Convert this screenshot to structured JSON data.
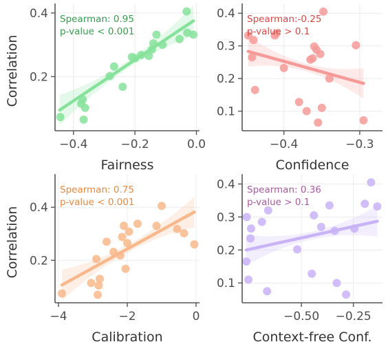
{
  "chart_data": [
    {
      "type": "scatter",
      "xlabel": "Fairness",
      "ylabel": "Correlation",
      "xlim": [
        -0.46,
        0.01
      ],
      "ylim": [
        0.03,
        0.43
      ],
      "xticks": [
        -0.4,
        -0.2,
        0.0
      ],
      "xtick_labels": [
        "−0.4",
        "−0.2",
        "0.0"
      ],
      "yticks": [
        0.2,
        0.4
      ],
      "ytick_labels": [
        "0.2",
        "0.4"
      ],
      "color": "#86e29b",
      "annotation": [
        "Spearman: 0.95",
        "p-value < 0.001"
      ],
      "annotation_color": "#3a9a4e",
      "grid": true,
      "points": [
        {
          "x": -0.443,
          "y": 0.073
        },
        {
          "x": -0.375,
          "y": 0.115
        },
        {
          "x": -0.37,
          "y": 0.128
        },
        {
          "x": -0.367,
          "y": 0.065
        },
        {
          "x": -0.362,
          "y": 0.102
        },
        {
          "x": -0.282,
          "y": 0.202
        },
        {
          "x": -0.268,
          "y": 0.232
        },
        {
          "x": -0.24,
          "y": 0.168
        },
        {
          "x": -0.21,
          "y": 0.262
        },
        {
          "x": -0.2,
          "y": 0.258
        },
        {
          "x": -0.18,
          "y": 0.268
        },
        {
          "x": -0.155,
          "y": 0.265
        },
        {
          "x": -0.145,
          "y": 0.285
        },
        {
          "x": -0.14,
          "y": 0.305
        },
        {
          "x": -0.13,
          "y": 0.332
        },
        {
          "x": -0.11,
          "y": 0.3
        },
        {
          "x": -0.055,
          "y": 0.318
        },
        {
          "x": -0.032,
          "y": 0.405
        },
        {
          "x": -0.03,
          "y": 0.338
        },
        {
          "x": -0.01,
          "y": 0.332
        }
      ],
      "fit": {
        "x": [
          -0.445,
          -0.01
        ],
        "y": [
          0.095,
          0.375
        ]
      }
    },
    {
      "type": "scatter",
      "xlabel": "Confidence",
      "ylabel": "",
      "xlim": [
        -0.455,
        -0.27
      ],
      "ylim": [
        0.04,
        0.43
      ],
      "xticks": [
        -0.4,
        -0.3
      ],
      "xtick_labels": [
        "−0.4",
        "−0.3"
      ],
      "yticks": [
        0.1,
        0.2,
        0.3,
        0.4
      ],
      "ytick_labels": [
        "0.1",
        "0.2",
        "0.3",
        "0.4"
      ],
      "color": "#f59a98",
      "annotation": [
        "Spearman:-0.25",
        "p-value > 0.1"
      ],
      "annotation_color": "#cf4a45",
      "grid": true,
      "points": [
        {
          "x": -0.447,
          "y": 0.332
        },
        {
          "x": -0.442,
          "y": 0.265
        },
        {
          "x": -0.44,
          "y": 0.318
        },
        {
          "x": -0.438,
          "y": 0.165
        },
        {
          "x": -0.412,
          "y": 0.332
        },
        {
          "x": -0.41,
          "y": 0.338
        },
        {
          "x": -0.4,
          "y": 0.232
        },
        {
          "x": -0.38,
          "y": 0.128
        },
        {
          "x": -0.37,
          "y": 0.1
        },
        {
          "x": -0.365,
          "y": 0.258
        },
        {
          "x": -0.362,
          "y": 0.262
        },
        {
          "x": -0.36,
          "y": 0.298
        },
        {
          "x": -0.357,
          "y": 0.288
        },
        {
          "x": -0.355,
          "y": 0.065
        },
        {
          "x": -0.352,
          "y": 0.275
        },
        {
          "x": -0.35,
          "y": 0.11
        },
        {
          "x": -0.348,
          "y": 0.405
        },
        {
          "x": -0.34,
          "y": 0.2
        },
        {
          "x": -0.305,
          "y": 0.302
        },
        {
          "x": -0.295,
          "y": 0.072
        }
      ],
      "fit": {
        "x": [
          -0.447,
          -0.295
        ],
        "y": [
          0.283,
          0.185
        ]
      }
    },
    {
      "type": "scatter",
      "xlabel": "Calibration",
      "ylabel": "Correlation",
      "xlim": [
        -4.1,
        0.1
      ],
      "ylim": [
        0.04,
        0.525
      ],
      "xticks": [
        -4,
        -2,
        0
      ],
      "xtick_labels": [
        "−4",
        "−2",
        "0"
      ],
      "yticks": [
        0.2,
        0.4
      ],
      "ytick_labels": [
        "0.2",
        "0.4"
      ],
      "color": "#f8b88b",
      "annotation": [
        "Spearman: 0.75",
        "p-value < 0.001"
      ],
      "annotation_color": "#e08a45",
      "grid": true,
      "points": [
        {
          "x": -3.9,
          "y": 0.075
        },
        {
          "x": -3.05,
          "y": 0.115
        },
        {
          "x": -2.9,
          "y": 0.205
        },
        {
          "x": -2.86,
          "y": 0.07
        },
        {
          "x": -2.83,
          "y": 0.105
        },
        {
          "x": -2.8,
          "y": 0.13
        },
        {
          "x": -2.6,
          "y": 0.27
        },
        {
          "x": -2.4,
          "y": 0.232
        },
        {
          "x": -2.2,
          "y": 0.218
        },
        {
          "x": -2.15,
          "y": 0.288
        },
        {
          "x": -2.1,
          "y": 0.33
        },
        {
          "x": -2.05,
          "y": 0.168
        },
        {
          "x": -2.0,
          "y": 0.265
        },
        {
          "x": -1.95,
          "y": 0.308
        },
        {
          "x": -1.7,
          "y": 0.338
        },
        {
          "x": -1.15,
          "y": 0.33
        },
        {
          "x": -1.0,
          "y": 0.405
        },
        {
          "x": -0.55,
          "y": 0.318
        },
        {
          "x": -0.35,
          "y": 0.302
        },
        {
          "x": -0.05,
          "y": 0.26
        }
      ],
      "fit": {
        "x": [
          -3.9,
          -0.05
        ],
        "y": [
          0.107,
          0.382
        ]
      }
    },
    {
      "type": "scatter",
      "xlabel": "Context-free Conf.",
      "ylabel": "",
      "xlim": [
        -0.785,
        -0.11
      ],
      "ylim": [
        0.04,
        0.43
      ],
      "xticks": [
        -0.5,
        -0.25
      ],
      "xtick_labels": [
        "−0.50",
        "−0.25"
      ],
      "yticks": [
        0.1,
        0.2,
        0.3,
        0.4
      ],
      "ytick_labels": [
        "0.1",
        "0.2",
        "0.3",
        "0.4"
      ],
      "color": "#c9b3f7",
      "annotation": [
        "Spearman: 0.36",
        "p-value > 0.1"
      ],
      "annotation_color": "#a65a9e",
      "grid": true,
      "points": [
        {
          "x": -0.765,
          "y": 0.165
        },
        {
          "x": -0.763,
          "y": 0.3
        },
        {
          "x": -0.755,
          "y": 0.11
        },
        {
          "x": -0.745,
          "y": 0.235
        },
        {
          "x": -0.742,
          "y": 0.265
        },
        {
          "x": -0.69,
          "y": 0.285
        },
        {
          "x": -0.665,
          "y": 0.075
        },
        {
          "x": -0.66,
          "y": 0.32
        },
        {
          "x": -0.52,
          "y": 0.202
        },
        {
          "x": -0.45,
          "y": 0.128
        },
        {
          "x": -0.44,
          "y": 0.305
        },
        {
          "x": -0.405,
          "y": 0.27
        },
        {
          "x": -0.365,
          "y": 0.335
        },
        {
          "x": -0.34,
          "y": 0.258
        },
        {
          "x": -0.33,
          "y": 0.1
        },
        {
          "x": -0.285,
          "y": 0.065
        },
        {
          "x": -0.245,
          "y": 0.265
        },
        {
          "x": -0.195,
          "y": 0.34
        },
        {
          "x": -0.165,
          "y": 0.405
        },
        {
          "x": -0.135,
          "y": 0.332
        }
      ],
      "fit": {
        "x": [
          -0.765,
          -0.135
        ],
        "y": [
          0.2,
          0.287
        ]
      }
    }
  ]
}
